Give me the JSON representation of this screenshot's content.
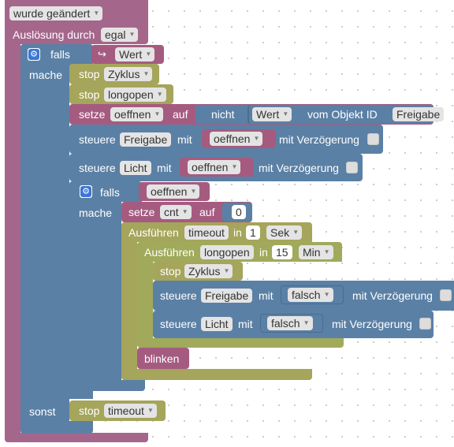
{
  "colors": {
    "event": "#a5668c",
    "logic": "#5b80a5",
    "variable": "#a55b80",
    "action": "#a5a55b",
    "timeout": "#a5a55b",
    "nested_timeout": "#a0aa5a",
    "field_bg": "#e4e4e4",
    "number_bg": "#ffffff"
  },
  "trigger": {
    "title": "wurde geändert",
    "trigger_label": "Auslösung durch",
    "trigger_value": "egal"
  },
  "if_block": {
    "if_label": "falls",
    "if_var_icon": "variable-arrow-icon",
    "if_var": "Wert",
    "do_label": "mache",
    "else_label": "sonst"
  },
  "statements": {
    "stop_label": "stop",
    "stop_zyklus": "Zyklus",
    "stop_longopen": "longopen",
    "set_label": "setze",
    "set_var_oeffnen": "oeffnen",
    "set_auf": "auf",
    "not_label": "nicht",
    "wert_value": "Wert",
    "vom_objekt_label": "vom Objekt ID",
    "objekt_id": "Freigabe",
    "control_label": "steuere",
    "control1_target": "Freigabe",
    "control_mit": "mit",
    "control1_value": "oeffnen",
    "control_delay_label": "mit Verzögerung",
    "control2_target": "Licht",
    "control2_value": "oeffnen"
  },
  "inner_if": {
    "if_label": "falls",
    "condition": "oeffnen",
    "do_label": "mache",
    "set_label": "setze",
    "set_var": "cnt",
    "set_auf": "auf",
    "set_value": "0"
  },
  "timeout1": {
    "label": "Ausführen",
    "name": "timeout",
    "in_label": "in",
    "amount": "1",
    "unit": "Sek"
  },
  "timeout2": {
    "label": "Ausführen",
    "name": "longopen",
    "in_label": "in",
    "amount": "15",
    "unit": "Min",
    "stop_label": "stop",
    "stop_target": "Zyklus",
    "control_label": "steuere",
    "control1_target": "Freigabe",
    "control_mit": "mit",
    "control1_value": "falsch",
    "control_delay_label": "mit Verzögerung",
    "control2_target": "Licht",
    "control2_value": "falsch"
  },
  "blink_label": "blinken",
  "else_stop": {
    "label": "stop",
    "target": "timeout"
  }
}
